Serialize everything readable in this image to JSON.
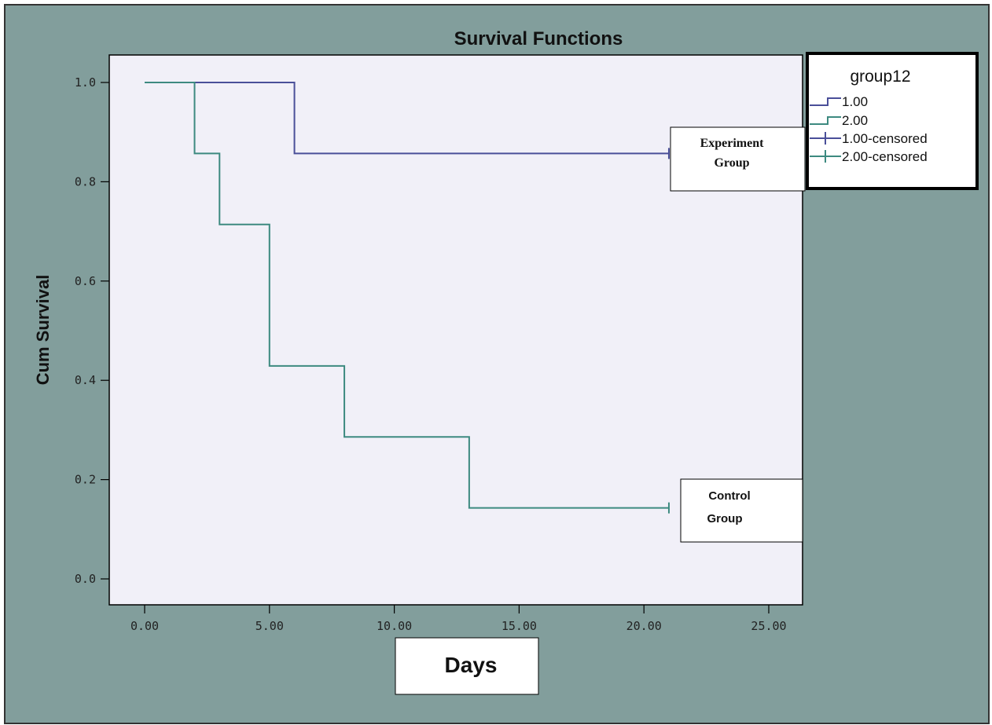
{
  "chart_data": {
    "type": "line",
    "step": true,
    "title": "Survival Functions",
    "xlabel": "Days",
    "ylabel": "Cum Survival",
    "xlim": [
      0,
      25
    ],
    "ylim": [
      0,
      1
    ],
    "x_ticks": [
      0,
      5,
      10,
      15,
      20,
      25
    ],
    "x_tick_labels": [
      "0.00",
      "5.00",
      "10.00",
      "15.00",
      "20.00",
      "25.00"
    ],
    "y_ticks": [
      0,
      0.2,
      0.4,
      0.6,
      0.8,
      1.0
    ],
    "y_tick_labels": [
      "0.0",
      "0.2",
      "0.4",
      "0.6",
      "0.8",
      "1.0"
    ],
    "grid": false,
    "legend": {
      "title": "group12",
      "placement": "top-right",
      "entries": [
        "1.00",
        "2.00",
        "1.00-censored",
        "2.00-censored"
      ]
    },
    "series": [
      {
        "name": "1.00",
        "color": "#4a4f99",
        "x": [
          0,
          6,
          21
        ],
        "y": [
          1.0,
          0.857,
          0.857
        ],
        "censored": [
          {
            "x": 21,
            "y": 0.857
          }
        ]
      },
      {
        "name": "2.00",
        "color": "#3d8a80",
        "x": [
          0,
          2,
          3,
          5,
          8,
          13,
          21
        ],
        "y": [
          1.0,
          0.857,
          0.714,
          0.429,
          0.286,
          0.143,
          0.143
        ],
        "censored": [
          {
            "x": 21,
            "y": 0.143
          }
        ]
      }
    ],
    "annotations": [
      {
        "text_lines": [
          "Experiment",
          "Group"
        ],
        "series": "1.00"
      },
      {
        "text_lines": [
          "Control",
          "Group"
        ],
        "series": "2.00"
      }
    ],
    "colors": {
      "outer_background": "#829e9c",
      "plot_background": "#f1f0f8",
      "series_1": "#4a4f99",
      "series_2": "#3d8a80"
    }
  }
}
